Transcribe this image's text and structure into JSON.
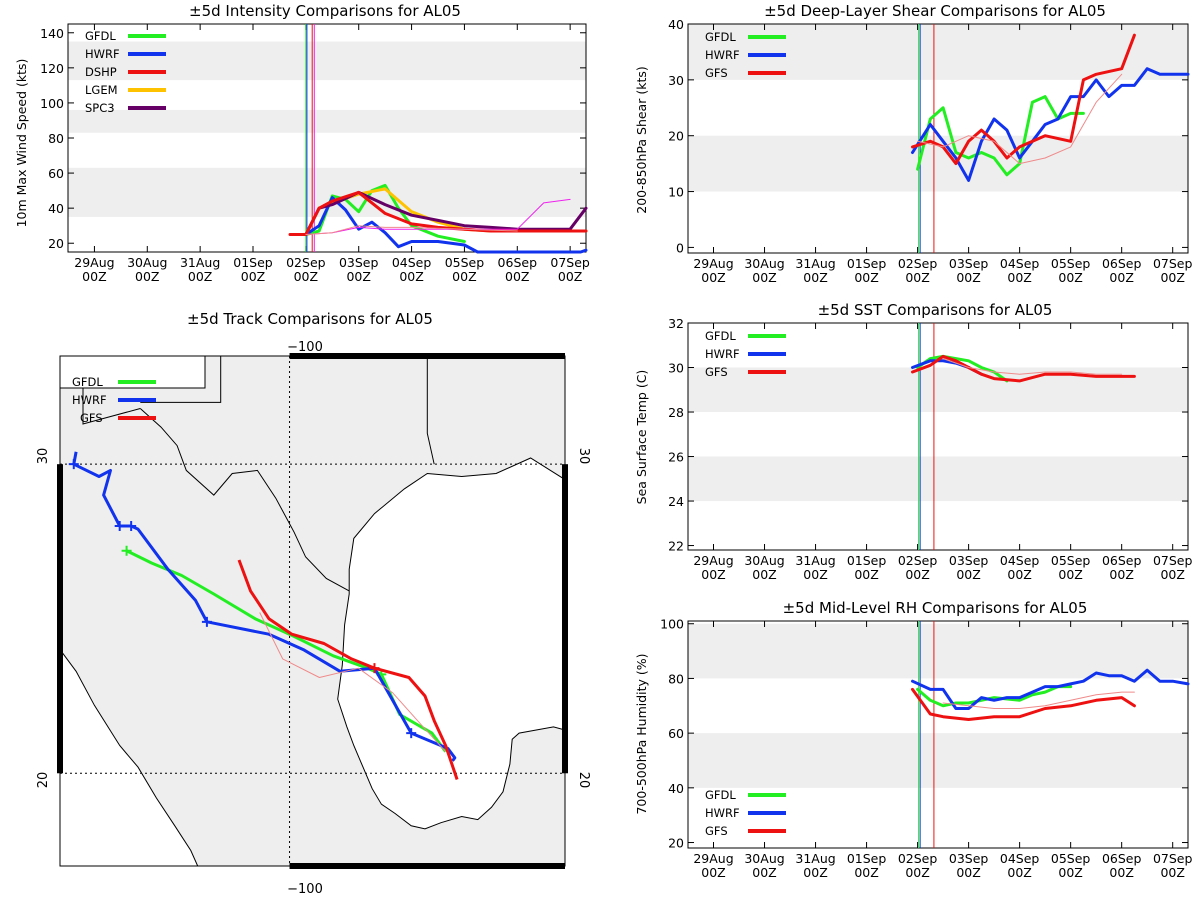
{
  "time_axis": {
    "dates": [
      "29Aug",
      "30Aug",
      "31Aug",
      "01Sep",
      "02Sep",
      "03Sep",
      "04Sep",
      "05Sep",
      "06Sep",
      "07Sep"
    ],
    "hour": "00Z"
  },
  "colors": {
    "GFDL": "#22ee22",
    "HWRF": "#1133ee",
    "DSHP": "#ee1111",
    "LGEM": "#ffc200",
    "SPC3": "#660066",
    "GFS": "#ee1111",
    "GFS_thin": "#f08a8a",
    "extra_magenta": "#ee22ee"
  },
  "chart_data": [
    {
      "id": "intensity",
      "type": "line",
      "title": "±5d Intensity Comparisons for AL05",
      "ylabel": "10m Max Wind Speed (kts)",
      "ylim": [
        15,
        145
      ],
      "yticks": [
        20,
        40,
        60,
        80,
        100,
        120,
        140
      ],
      "xlim": [
        -0.5,
        9.3
      ],
      "bands": [
        [
          35,
          63
        ],
        [
          83,
          96
        ],
        [
          113,
          135
        ]
      ],
      "vlines": [
        {
          "x": 4.0,
          "color": "#22ee22"
        },
        {
          "x": 4.02,
          "color": "#1133ee"
        },
        {
          "x": 4.12,
          "color": "#ee1111"
        },
        {
          "x": 4.16,
          "color": "#ee22ee"
        }
      ],
      "legend": [
        "GFDL",
        "HWRF",
        "DSHP",
        "LGEM",
        "SPC3"
      ],
      "series": [
        {
          "name": "GFDL",
          "x": [
            4.0,
            4.25,
            4.5,
            4.75,
            5.0,
            5.25,
            5.5,
            5.75,
            6.0,
            6.5,
            7.0
          ],
          "y": [
            25,
            27,
            47,
            45,
            38,
            50,
            53,
            40,
            30,
            24,
            21
          ],
          "width": 3
        },
        {
          "name": "HWRF",
          "x": [
            4.0,
            4.25,
            4.5,
            4.75,
            5.0,
            5.25,
            5.5,
            5.75,
            6.0,
            6.5,
            7.0,
            7.25,
            7.9,
            8.3,
            9.2,
            9.3
          ],
          "y": [
            25,
            30,
            46,
            39,
            28,
            32,
            26,
            18,
            21,
            21,
            19,
            15,
            15,
            15,
            15,
            16
          ],
          "width": 3
        },
        {
          "name": "LGEM",
          "x": [
            4.0,
            4.25,
            4.5,
            5.0,
            5.5,
            6.0,
            6.5,
            7.0,
            7.5,
            8.0,
            8.5,
            9.0,
            9.3
          ],
          "y": [
            25,
            40,
            43,
            48,
            51,
            38,
            32,
            28,
            27,
            27,
            27,
            27,
            27
          ],
          "width": 3
        },
        {
          "name": "SPC3",
          "x": [
            4.0,
            4.25,
            4.5,
            5.0,
            5.5,
            6.0,
            6.5,
            7.0,
            7.5,
            8.0,
            8.5,
            9.0,
            9.3
          ],
          "y": [
            25,
            40,
            42,
            49,
            42,
            36,
            33,
            30,
            29,
            28,
            28,
            28,
            40
          ],
          "width": 3
        },
        {
          "name": "DSHP",
          "x": [
            3.7,
            4.0,
            4.25,
            4.5,
            5.0,
            5.5,
            6.0,
            6.5,
            7.0,
            7.5,
            8.0,
            8.5,
            9.0,
            9.3
          ],
          "y": [
            25,
            25,
            40,
            44,
            49,
            37,
            31,
            29,
            28,
            27,
            27,
            27,
            27,
            27
          ],
          "width": 3
        },
        {
          "name": "magenta",
          "x": [
            4.0,
            4.5,
            5.0,
            5.5,
            6.0,
            7.0,
            8.0,
            8.5,
            9.0
          ],
          "y": [
            25,
            26,
            29,
            28,
            28,
            28,
            28,
            43,
            45
          ],
          "width": 1,
          "color": "#ee22ee"
        },
        {
          "name": "GFS_thin",
          "x": [
            4.0,
            4.5,
            5.0,
            5.5,
            6.0,
            7.0,
            8.0
          ],
          "y": [
            25,
            26,
            30,
            29,
            29,
            28,
            27
          ],
          "width": 1,
          "color": "#f08a8a"
        }
      ]
    },
    {
      "id": "shear",
      "type": "line",
      "title": "±5d Deep-Layer Shear Comparisons for AL05",
      "ylabel": "200-850hPa Shear (kts)",
      "ylim": [
        -1,
        40
      ],
      "yticks": [
        0,
        10,
        20,
        30,
        40
      ],
      "xlim": [
        -0.5,
        9.3
      ],
      "bands": [
        [
          10,
          20
        ],
        [
          30,
          40
        ]
      ],
      "vlines": [
        {
          "x": 4.02,
          "color": "#22ee22"
        },
        {
          "x": 4.05,
          "color": "#1133ee"
        },
        {
          "x": 4.32,
          "color": "#ee1111"
        }
      ],
      "legend": [
        "GFDL",
        "HWRF",
        "GFS"
      ],
      "series": [
        {
          "name": "GFDL",
          "x": [
            4.0,
            4.25,
            4.5,
            4.75,
            5.0,
            5.25,
            5.5,
            5.75,
            6.0,
            6.25,
            6.5,
            6.75,
            7.0,
            7.25
          ],
          "y": [
            14,
            23,
            25,
            17,
            16,
            17,
            16,
            13,
            15,
            26,
            27,
            23,
            24,
            24
          ],
          "width": 3
        },
        {
          "name": "HWRF",
          "x": [
            3.9,
            4.25,
            4.5,
            4.75,
            5.0,
            5.25,
            5.5,
            5.75,
            6.0,
            6.25,
            6.5,
            6.75,
            7.0,
            7.25,
            7.5,
            7.75,
            8.0,
            8.25,
            8.5,
            8.75,
            9.0,
            9.3
          ],
          "y": [
            17,
            22,
            19,
            16,
            12,
            19,
            23,
            21,
            16,
            19,
            22,
            23,
            27,
            27,
            30,
            27,
            29,
            29,
            32,
            31,
            31,
            31
          ],
          "width": 3
        },
        {
          "name": "GFS",
          "x": [
            3.9,
            4.25,
            4.5,
            4.75,
            5.0,
            5.25,
            5.5,
            5.75,
            6.0,
            6.5,
            7.0,
            7.25,
            7.5,
            8.0,
            8.25
          ],
          "y": [
            18,
            19,
            18,
            15,
            19,
            21,
            19,
            16,
            18,
            20,
            19,
            30,
            31,
            32,
            38
          ],
          "width": 3
        },
        {
          "name": "GFS_thin",
          "x": [
            4.0,
            4.5,
            5.0,
            5.5,
            6.0,
            6.5,
            7.0,
            7.5,
            8.0
          ],
          "y": [
            19,
            18,
            20,
            19,
            15,
            16,
            18,
            26,
            31
          ],
          "width": 1,
          "color": "#f08a8a"
        }
      ]
    },
    {
      "id": "sst",
      "type": "line",
      "title": "±5d SST Comparisons for AL05",
      "ylabel": "Sea Surface Temp (C)",
      "ylim": [
        21.8,
        32
      ],
      "yticks": [
        22,
        24,
        26,
        28,
        30,
        32
      ],
      "xlim": [
        -0.5,
        9.3
      ],
      "bands": [
        [
          24,
          26
        ],
        [
          28,
          30
        ]
      ],
      "vlines": [
        {
          "x": 4.02,
          "color": "#22ee22"
        },
        {
          "x": 4.05,
          "color": "#1133ee"
        },
        {
          "x": 4.32,
          "color": "#ee1111"
        }
      ],
      "legend": [
        "GFDL",
        "HWRF",
        "GFS"
      ],
      "series": [
        {
          "name": "GFDL",
          "x": [
            4.0,
            4.25,
            4.5,
            4.75,
            5.0,
            5.25,
            5.5,
            5.75
          ],
          "y": [
            30.0,
            30.4,
            30.5,
            30.4,
            30.3,
            30.0,
            29.8,
            29.4
          ],
          "width": 3
        },
        {
          "name": "HWRF",
          "x": [
            3.9,
            4.25,
            4.5,
            4.75,
            5.0,
            5.25
          ],
          "y": [
            30.0,
            30.3,
            30.3,
            30.2,
            30.0,
            29.7
          ],
          "width": 3
        },
        {
          "name": "GFS",
          "x": [
            3.9,
            4.25,
            4.5,
            4.75,
            5.0,
            5.25,
            5.5,
            6.0,
            6.5,
            7.0,
            7.5,
            8.0,
            8.25
          ],
          "y": [
            29.8,
            30.1,
            30.5,
            30.3,
            30.0,
            29.7,
            29.5,
            29.4,
            29.7,
            29.7,
            29.6,
            29.6,
            29.6
          ],
          "width": 3
        },
        {
          "name": "GFS_thin",
          "x": [
            4.5,
            5.0,
            5.5,
            6.0,
            6.5,
            7.0,
            7.5,
            8.0
          ],
          "y": [
            30.4,
            30.0,
            29.8,
            29.7,
            29.8,
            29.8,
            29.7,
            29.7
          ],
          "width": 1,
          "color": "#f08a8a"
        }
      ]
    },
    {
      "id": "rh",
      "type": "line",
      "title": "±5d Mid-Level RH Comparisons for AL05",
      "ylabel": "700-500hPa Humidity (%)",
      "ylim": [
        18,
        101
      ],
      "yticks": [
        20,
        40,
        60,
        80,
        100
      ],
      "xlim": [
        -0.5,
        9.3
      ],
      "bands": [
        [
          40,
          60
        ],
        [
          80,
          100
        ]
      ],
      "vlines": [
        {
          "x": 4.02,
          "color": "#22ee22"
        },
        {
          "x": 4.05,
          "color": "#1133ee"
        },
        {
          "x": 4.32,
          "color": "#ee1111"
        }
      ],
      "legend": [
        "GFDL",
        "HWRF",
        "GFS"
      ],
      "series": [
        {
          "name": "GFDL",
          "x": [
            4.0,
            4.25,
            4.5,
            4.75,
            5.0,
            5.25,
            5.5,
            6.0,
            6.25,
            6.5,
            6.75,
            7.0
          ],
          "y": [
            76,
            72,
            70,
            71,
            71,
            72,
            73,
            72,
            74,
            75,
            77,
            77
          ],
          "width": 3
        },
        {
          "name": "HWRF",
          "x": [
            3.9,
            4.25,
            4.5,
            4.75,
            5.0,
            5.25,
            5.5,
            5.75,
            6.0,
            6.25,
            6.5,
            6.75,
            7.0,
            7.25,
            7.5,
            7.75,
            8.0,
            8.25,
            8.5,
            8.75,
            9.0,
            9.3
          ],
          "y": [
            79,
            76,
            76,
            69,
            69,
            73,
            72,
            73,
            73,
            75,
            77,
            77,
            78,
            79,
            82,
            81,
            81,
            79,
            83,
            79,
            79,
            78
          ],
          "width": 3
        },
        {
          "name": "GFS",
          "x": [
            3.9,
            4.25,
            4.5,
            5.0,
            5.5,
            6.0,
            6.5,
            7.0,
            7.5,
            8.0,
            8.25
          ],
          "y": [
            76,
            67,
            66,
            65,
            66,
            66,
            69,
            70,
            72,
            73,
            70
          ],
          "width": 3
        },
        {
          "name": "GFS_thin",
          "x": [
            4.5,
            5.0,
            5.5,
            6.0,
            6.5,
            7.0,
            7.5,
            8.0,
            8.25
          ],
          "y": [
            71,
            70,
            69,
            69,
            70,
            72,
            74,
            75,
            75
          ],
          "width": 1,
          "color": "#f08a8a"
        }
      ]
    },
    {
      "id": "track",
      "type": "map",
      "title": "±5d Track Comparisons for AL05",
      "lon_range": [
        -110,
        -88
      ],
      "lat_range": [
        17,
        33.5
      ],
      "lon_label_top": "−100",
      "lon_label_bottom": "−100",
      "lat_labels": [
        "30",
        "20"
      ],
      "lat_labels_right": [
        "30",
        "20"
      ],
      "legend": [
        "GFDL",
        "HWRF",
        "GFS"
      ],
      "tracks": [
        {
          "name": "GFDL",
          "lon": [
            -107.1,
            -106.0,
            -104.7,
            -103.3,
            -101.5,
            -100.0,
            -98.1,
            -96.6,
            -96.0,
            -95.2,
            -93.8,
            -93.2
          ],
          "lat": [
            27.2,
            26.8,
            26.4,
            25.8,
            25.0,
            24.5,
            23.8,
            23.4,
            23.2,
            21.9,
            21.3,
            20.7
          ],
          "width": 3,
          "crosses": [
            0,
            8
          ]
        },
        {
          "name": "HWRF",
          "lon": [
            -109.3,
            -109.4,
            -108.3,
            -107.8,
            -108.1,
            -107.4,
            -106.9,
            -106.6,
            -105.3,
            -104.1,
            -103.6,
            -100.9,
            -99.4,
            -97.8,
            -96.3,
            -94.7,
            -93.1,
            -92.8,
            -92.9
          ],
          "lat": [
            30.4,
            30.0,
            29.6,
            29.8,
            29.0,
            28.0,
            28.0,
            27.9,
            26.6,
            25.6,
            24.9,
            24.5,
            24.0,
            23.3,
            23.4,
            21.3,
            20.8,
            20.5,
            20.4
          ],
          "width": 3,
          "crosses": [
            1,
            5,
            6,
            10,
            15
          ]
        },
        {
          "name": "GFS",
          "lon": [
            -102.2,
            -101.7,
            -100.9,
            -99.9,
            -98.5,
            -97.3,
            -96.3,
            -94.8,
            -94.1,
            -93.7,
            -93.2,
            -92.7
          ],
          "lat": [
            26.9,
            25.9,
            25.0,
            24.5,
            24.2,
            23.7,
            23.4,
            23.1,
            22.5,
            21.7,
            20.9,
            19.8
          ],
          "width": 3,
          "crosses": [
            6
          ]
        },
        {
          "name": "GFS_thin",
          "lon": [
            -101.3,
            -100.3,
            -98.7,
            -97.0,
            -95.5,
            -94.3,
            -93.2
          ],
          "lat": [
            25.2,
            23.7,
            23.1,
            23.4,
            22.6,
            21.6,
            20.7
          ],
          "width": 1,
          "color": "#f08a8a"
        }
      ]
    }
  ]
}
